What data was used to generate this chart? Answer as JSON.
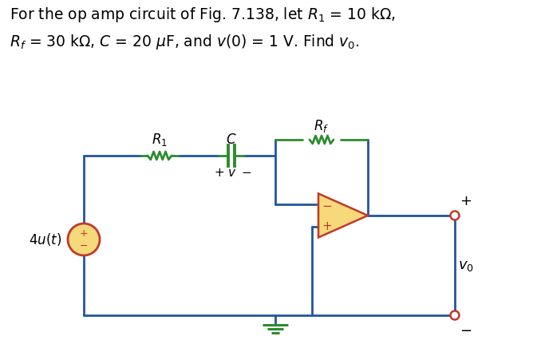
{
  "wire_color": "#2355a0",
  "resistor_color_r1": "#2e8b2e",
  "resistor_color_rf": "#2e8b2e",
  "capacitor_color": "#2e8b2e",
  "opamp_fill": "#f5d97a",
  "opamp_outline": "#c0392b",
  "source_fill": "#f5d97a",
  "source_outline": "#c0392b",
  "terminal_color": "#c0392b",
  "ground_color": "#2e8b2e",
  "text_color": "#000000",
  "bg_color": "#ffffff",
  "title1": "For the op amp circuit of Fig. 7.138, let $R_1$ = 10 k$\\Omega$,",
  "title2": "$R_f$ = 30 k$\\Omega$, $C$ = 20 $\\mu$F, and $v(0)$ = 1 V. Find $v_0$."
}
